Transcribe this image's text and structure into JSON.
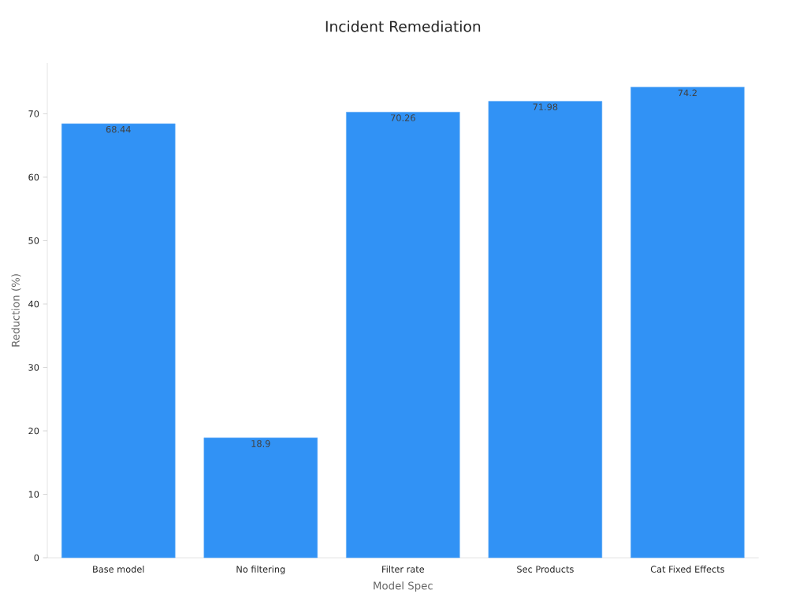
{
  "chart_data": {
    "type": "bar",
    "title": "Incident Remediation",
    "xlabel": "Model Spec",
    "ylabel": "Reduction (%)",
    "categories": [
      "Base model",
      "No filtering",
      "Filter rate",
      "Sec Products",
      "Cat Fixed Effects"
    ],
    "values": [
      68.44,
      18.9,
      70.26,
      71.98,
      74.2
    ],
    "color": "#3192f5",
    "ylim": [
      0,
      78
    ],
    "yticks": [
      0,
      10,
      20,
      30,
      40,
      50,
      60,
      70
    ],
    "data_labels": true
  }
}
